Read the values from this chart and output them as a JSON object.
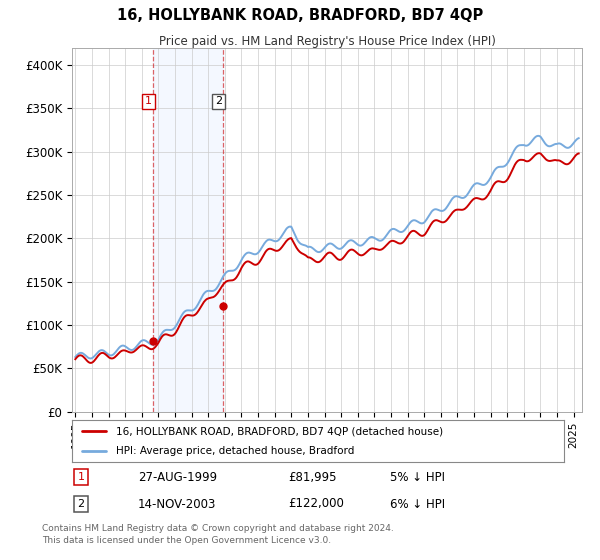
{
  "title1": "16, HOLLYBANK ROAD, BRADFORD, BD7 4QP",
  "title2": "Price paid vs. HM Land Registry's House Price Index (HPI)",
  "ylabel_ticks": [
    "£0",
    "£50K",
    "£100K",
    "£150K",
    "£200K",
    "£250K",
    "£300K",
    "£350K",
    "£400K"
  ],
  "ytick_values": [
    0,
    50000,
    100000,
    150000,
    200000,
    250000,
    300000,
    350000,
    400000
  ],
  "ylim": [
    0,
    420000
  ],
  "xlim_start": 1994.8,
  "xlim_end": 2025.5,
  "legend_line1": "16, HOLLYBANK ROAD, BRADFORD, BD7 4QP (detached house)",
  "legend_line2": "HPI: Average price, detached house, Bradford",
  "line1_color": "#cc0000",
  "line2_color": "#77aadd",
  "point1_label": "1",
  "point1_date": "27-AUG-1999",
  "point1_price": "£81,995",
  "point1_note": "5% ↓ HPI",
  "point1_x": 1999.65,
  "point1_y": 81995,
  "point2_label": "2",
  "point2_date": "14-NOV-2003",
  "point2_price": "£122,000",
  "point2_note": "6% ↓ HPI",
  "point2_x": 2003.87,
  "point2_y": 122000,
  "vline1_x": 1999.65,
  "vline2_x": 2003.87,
  "footnote1": "Contains HM Land Registry data © Crown copyright and database right 2024.",
  "footnote2": "This data is licensed under the Open Government Licence v3.0.",
  "bg_color": "#ffffff",
  "grid_color": "#cccccc",
  "shade_color": "#cce0ff"
}
